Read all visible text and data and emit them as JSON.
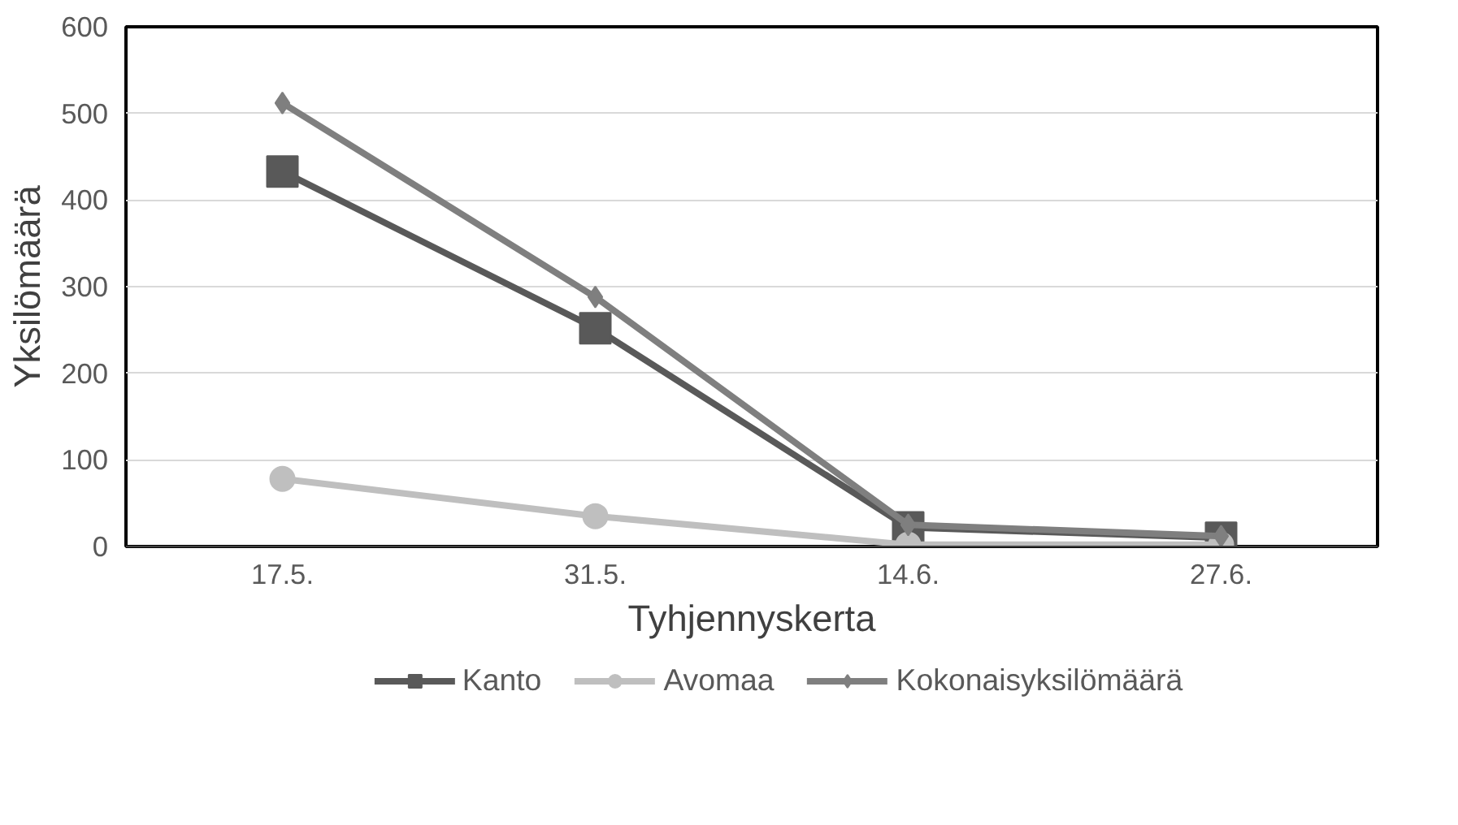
{
  "chart_data": {
    "type": "line",
    "xlabel": "Tyhjennyskerta",
    "ylabel": "Yksilömäärä",
    "categories": [
      "17.5.",
      "31.5.",
      "14.6.",
      "27.6."
    ],
    "ylim": [
      0,
      600
    ],
    "yticks": [
      0,
      100,
      200,
      300,
      400,
      500,
      600
    ],
    "grid": "y",
    "legend": "bottom",
    "line_style": "solid",
    "series": [
      {
        "name": "Kanto",
        "color": "#595959",
        "marker": "square",
        "values": [
          433,
          252,
          22,
          10
        ]
      },
      {
        "name": "Avomaa",
        "color": "#bfbfbf",
        "marker": "circle",
        "values": [
          78,
          35,
          2,
          2
        ]
      },
      {
        "name": "Kokonaisyksilömäärä",
        "color": "#7f7f7f",
        "marker": "diamond",
        "values": [
          512,
          288,
          25,
          12
        ]
      }
    ]
  }
}
